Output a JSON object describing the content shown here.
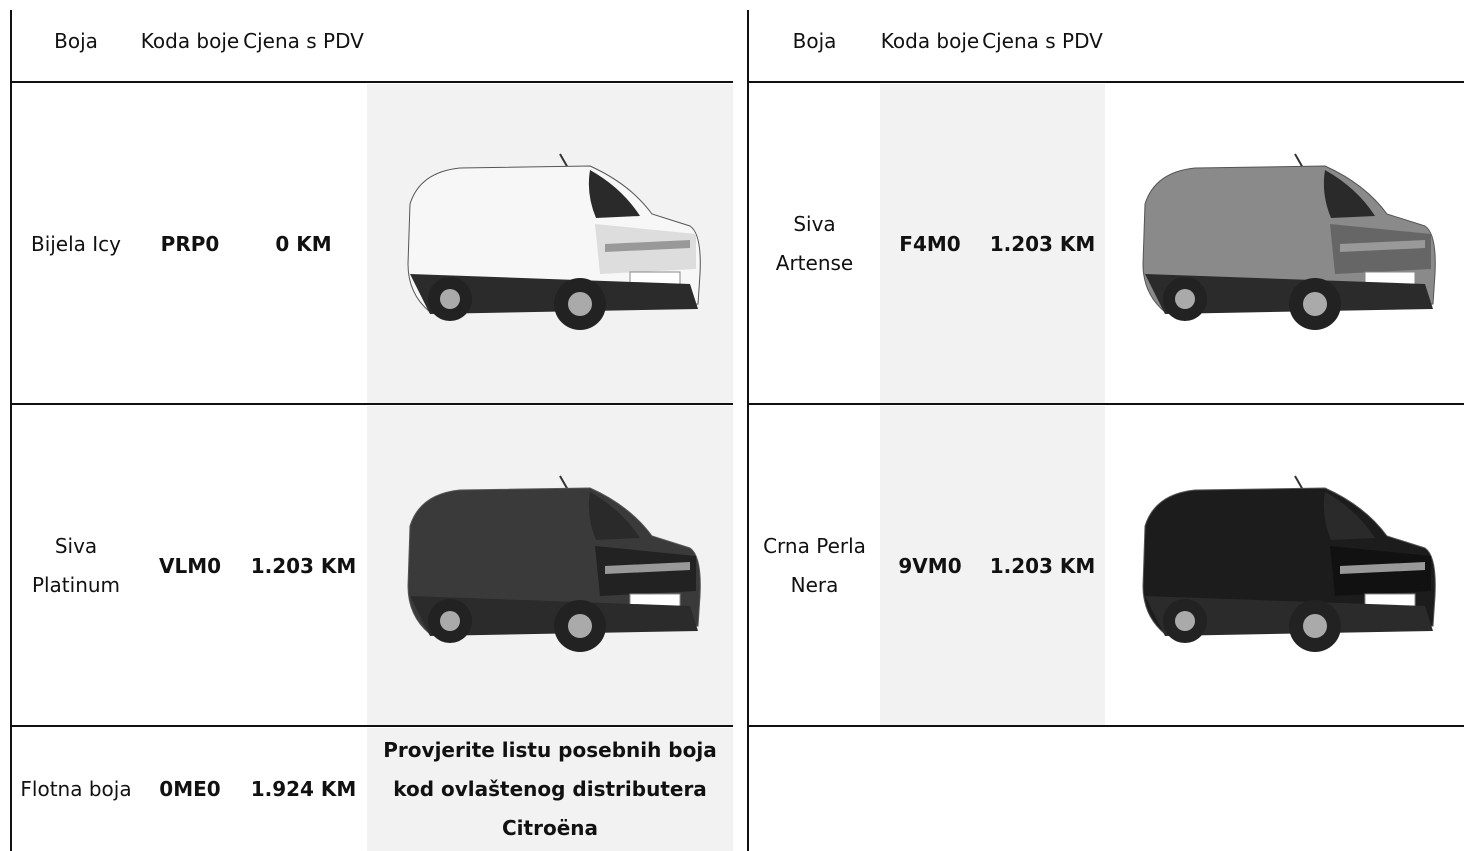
{
  "left_table": {
    "header": [
      "Boja",
      "Koda boje",
      "Cjena s PDV"
    ],
    "rows": [
      [
        "Bijela Icy",
        "PRP0",
        "0 KM"
      ],
      [
        "Siva Platinum",
        "VLM0",
        "1.203 KM"
      ],
      [
        "Flotna boja",
        "0ME0",
        "1.924 KM",
        "Provjerite listu posebnih boja kod ovlaštenog distributera Citroëna"
      ]
    ]
  },
  "right_table": {
    "header": [
      "Boja",
      "Koda boje",
      "Cjena s PDV"
    ],
    "rows": [
      [
        "Siva Artense",
        "F4M0",
        "1.203 KM"
      ],
      [
        "Crna Perla Nera",
        "9VM0",
        "1.203 KM"
      ]
    ]
  }
}
